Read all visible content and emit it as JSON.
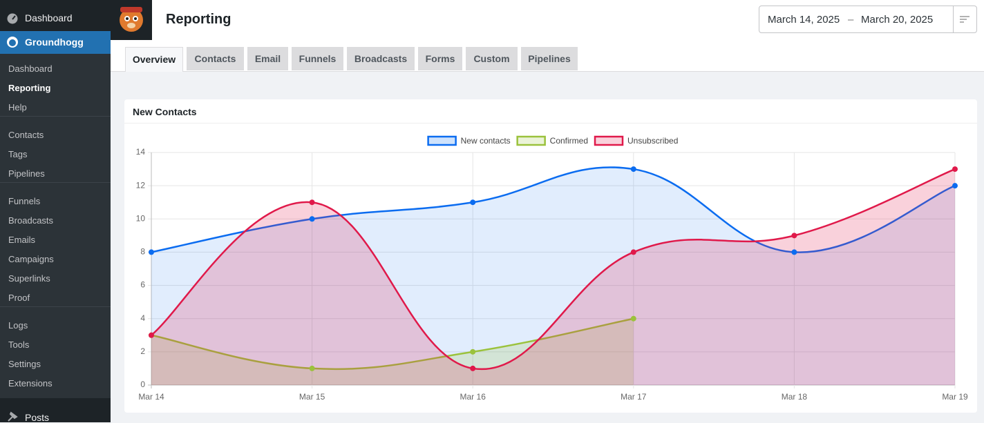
{
  "sidebar": {
    "top": "Dashboard",
    "active": "Groundhogg",
    "groups": [
      [
        "Dashboard",
        "Reporting",
        "Help"
      ],
      [
        "Contacts",
        "Tags",
        "Pipelines"
      ],
      [
        "Funnels",
        "Broadcasts",
        "Emails",
        "Campaigns",
        "Superlinks",
        "Proof"
      ],
      [
        "Logs",
        "Tools",
        "Settings",
        "Extensions"
      ]
    ],
    "bottom": "Posts"
  },
  "header": {
    "title": "Reporting"
  },
  "date_range": {
    "start": "March 14, 2025",
    "separator": "–",
    "end": "March 20, 2025"
  },
  "tabs": [
    "Overview",
    "Contacts",
    "Email",
    "Funnels",
    "Broadcasts",
    "Forms",
    "Custom",
    "Pipelines"
  ],
  "chart_data": {
    "type": "line",
    "title": "New Contacts",
    "categories": [
      "Mar 14",
      "Mar 15",
      "Mar 16",
      "Mar 17",
      "Mar 18",
      "Mar 19"
    ],
    "series": [
      {
        "name": "New contacts",
        "color": "#0b6cf0",
        "values": [
          8,
          10,
          11,
          13,
          8,
          12
        ]
      },
      {
        "name": "Confirmed",
        "color": "#9bc23c",
        "values": [
          3,
          1,
          2,
          4,
          null,
          null
        ]
      },
      {
        "name": "Unsubscribed",
        "color": "#e0194a",
        "values": [
          3,
          11,
          1,
          8,
          9,
          13
        ]
      }
    ],
    "ylim": [
      0,
      14
    ],
    "yticks": [
      0,
      2,
      4,
      6,
      8,
      10,
      12,
      14
    ],
    "grid": true,
    "legend": "top"
  }
}
